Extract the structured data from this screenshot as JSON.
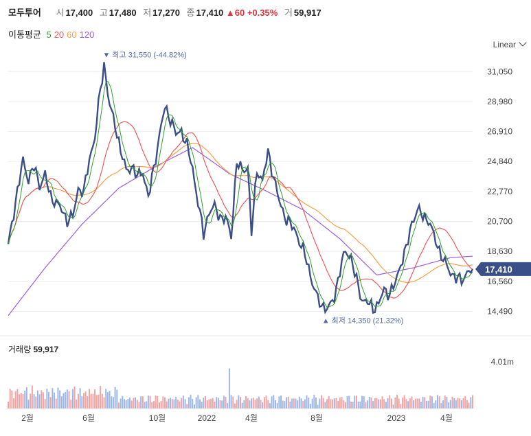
{
  "header": {
    "name": "모두투어",
    "open_label": "시",
    "open": "17,400",
    "high_label": "고",
    "high": "17,480",
    "low_label": "저",
    "low": "17,270",
    "close_label": "종",
    "close": "17,410",
    "change": "▲60",
    "change_pct": "+0.35%",
    "volume_label": "거",
    "volume": "59,917"
  },
  "ma_legend": {
    "label": "이동평균",
    "periods": [
      {
        "text": "5",
        "color": "#2ca02c"
      },
      {
        "text": "20",
        "color": "#f05a5a"
      },
      {
        "text": "60",
        "color": "#f5a04a"
      },
      {
        "text": "120",
        "color": "#9b5de5"
      }
    ]
  },
  "scale_selector": "Linear",
  "annotations": {
    "high": "최고",
    "high_value": "31,550 (-44.82%)",
    "low": "최저",
    "low_value": "14,350 (21.32%)"
  },
  "current_price_tag": "17,410",
  "volume_panel": {
    "label": "거래량",
    "value": "59,917",
    "tick": "4.01m"
  },
  "colors": {
    "price": "#3a4e87",
    "ma5": "#2ca02c",
    "ma20": "#f05a5a",
    "ma60": "#f5a04a",
    "ma120": "#9b5de5",
    "vol_up": "#f4a3a3",
    "vol_down": "#9db8e8"
  },
  "chart_data": {
    "type": "line",
    "y_ticks": [
      "31,050",
      "28,980",
      "26,910",
      "24,840",
      "22,770",
      "20,700",
      "18,630",
      "16,560",
      "14,490"
    ],
    "x_ticks": [
      "2월",
      "6월",
      "10월",
      "2022",
      "4월",
      "8월",
      "2023",
      "4월"
    ],
    "ylim": [
      13800,
      32200
    ],
    "series": [
      {
        "name": "price",
        "points": [
          [
            0,
            19000
          ],
          [
            2,
            20600
          ],
          [
            5,
            22800
          ],
          [
            8,
            24900
          ],
          [
            11,
            23600
          ],
          [
            14,
            24500
          ],
          [
            17,
            23200
          ],
          [
            20,
            23900
          ],
          [
            23,
            22400
          ],
          [
            26,
            22000
          ],
          [
            29,
            21500
          ],
          [
            32,
            20800
          ],
          [
            35,
            21000
          ],
          [
            38,
            23000
          ],
          [
            41,
            22700
          ],
          [
            44,
            25000
          ],
          [
            47,
            26500
          ],
          [
            50,
            29800
          ],
          [
            52,
            31550
          ],
          [
            55,
            28700
          ],
          [
            58,
            27400
          ],
          [
            61,
            25600
          ],
          [
            64,
            24200
          ],
          [
            67,
            24500
          ],
          [
            70,
            23800
          ],
          [
            73,
            24200
          ],
          [
            76,
            22300
          ],
          [
            79,
            24400
          ],
          [
            82,
            26600
          ],
          [
            85,
            28600
          ],
          [
            88,
            27800
          ],
          [
            91,
            26700
          ],
          [
            94,
            27000
          ],
          [
            97,
            25900
          ],
          [
            100,
            24400
          ],
          [
            103,
            22000
          ],
          [
            106,
            19800
          ],
          [
            109,
            21400
          ],
          [
            112,
            21700
          ],
          [
            115,
            21000
          ],
          [
            118,
            20900
          ],
          [
            121,
            19700
          ],
          [
            124,
            24800
          ],
          [
            127,
            24200
          ],
          [
            130,
            24500
          ],
          [
            132,
            19900
          ],
          [
            135,
            24300
          ],
          [
            138,
            23500
          ],
          [
            141,
            25500
          ],
          [
            144,
            23800
          ],
          [
            147,
            22100
          ],
          [
            150,
            21100
          ],
          [
            153,
            20500
          ],
          [
            156,
            20000
          ],
          [
            159,
            19000
          ],
          [
            162,
            18000
          ],
          [
            165,
            16500
          ],
          [
            168,
            15300
          ],
          [
            171,
            14800
          ],
          [
            174,
            14700
          ],
          [
            177,
            15500
          ],
          [
            180,
            17300
          ],
          [
            183,
            18700
          ],
          [
            186,
            18200
          ],
          [
            189,
            16600
          ],
          [
            192,
            15300
          ],
          [
            195,
            15100
          ],
          [
            198,
            14700
          ],
          [
            201,
            15000
          ],
          [
            204,
            16000
          ],
          [
            207,
            15700
          ],
          [
            210,
            16400
          ],
          [
            213,
            17800
          ],
          [
            216,
            18800
          ],
          [
            219,
            20600
          ],
          [
            222,
            21500
          ],
          [
            225,
            21100
          ],
          [
            228,
            20800
          ],
          [
            231,
            19700
          ],
          [
            234,
            18700
          ],
          [
            237,
            17800
          ],
          [
            240,
            17200
          ],
          [
            243,
            16800
          ],
          [
            246,
            16600
          ],
          [
            249,
            17200
          ],
          [
            252,
            17410
          ]
        ]
      },
      {
        "name": "ma120",
        "points": [
          [
            0,
            14200
          ],
          [
            20,
            17500
          ],
          [
            40,
            20500
          ],
          [
            60,
            23000
          ],
          [
            80,
            24500
          ],
          [
            100,
            25800
          ],
          [
            120,
            24000
          ],
          [
            140,
            22800
          ],
          [
            160,
            21500
          ],
          [
            180,
            19500
          ],
          [
            200,
            17000
          ],
          [
            220,
            17500
          ],
          [
            240,
            18200
          ],
          [
            252,
            18300
          ]
        ]
      }
    ],
    "volume": {
      "max": 4010000,
      "spike_index": 120,
      "spike_value": 3500000
    }
  }
}
